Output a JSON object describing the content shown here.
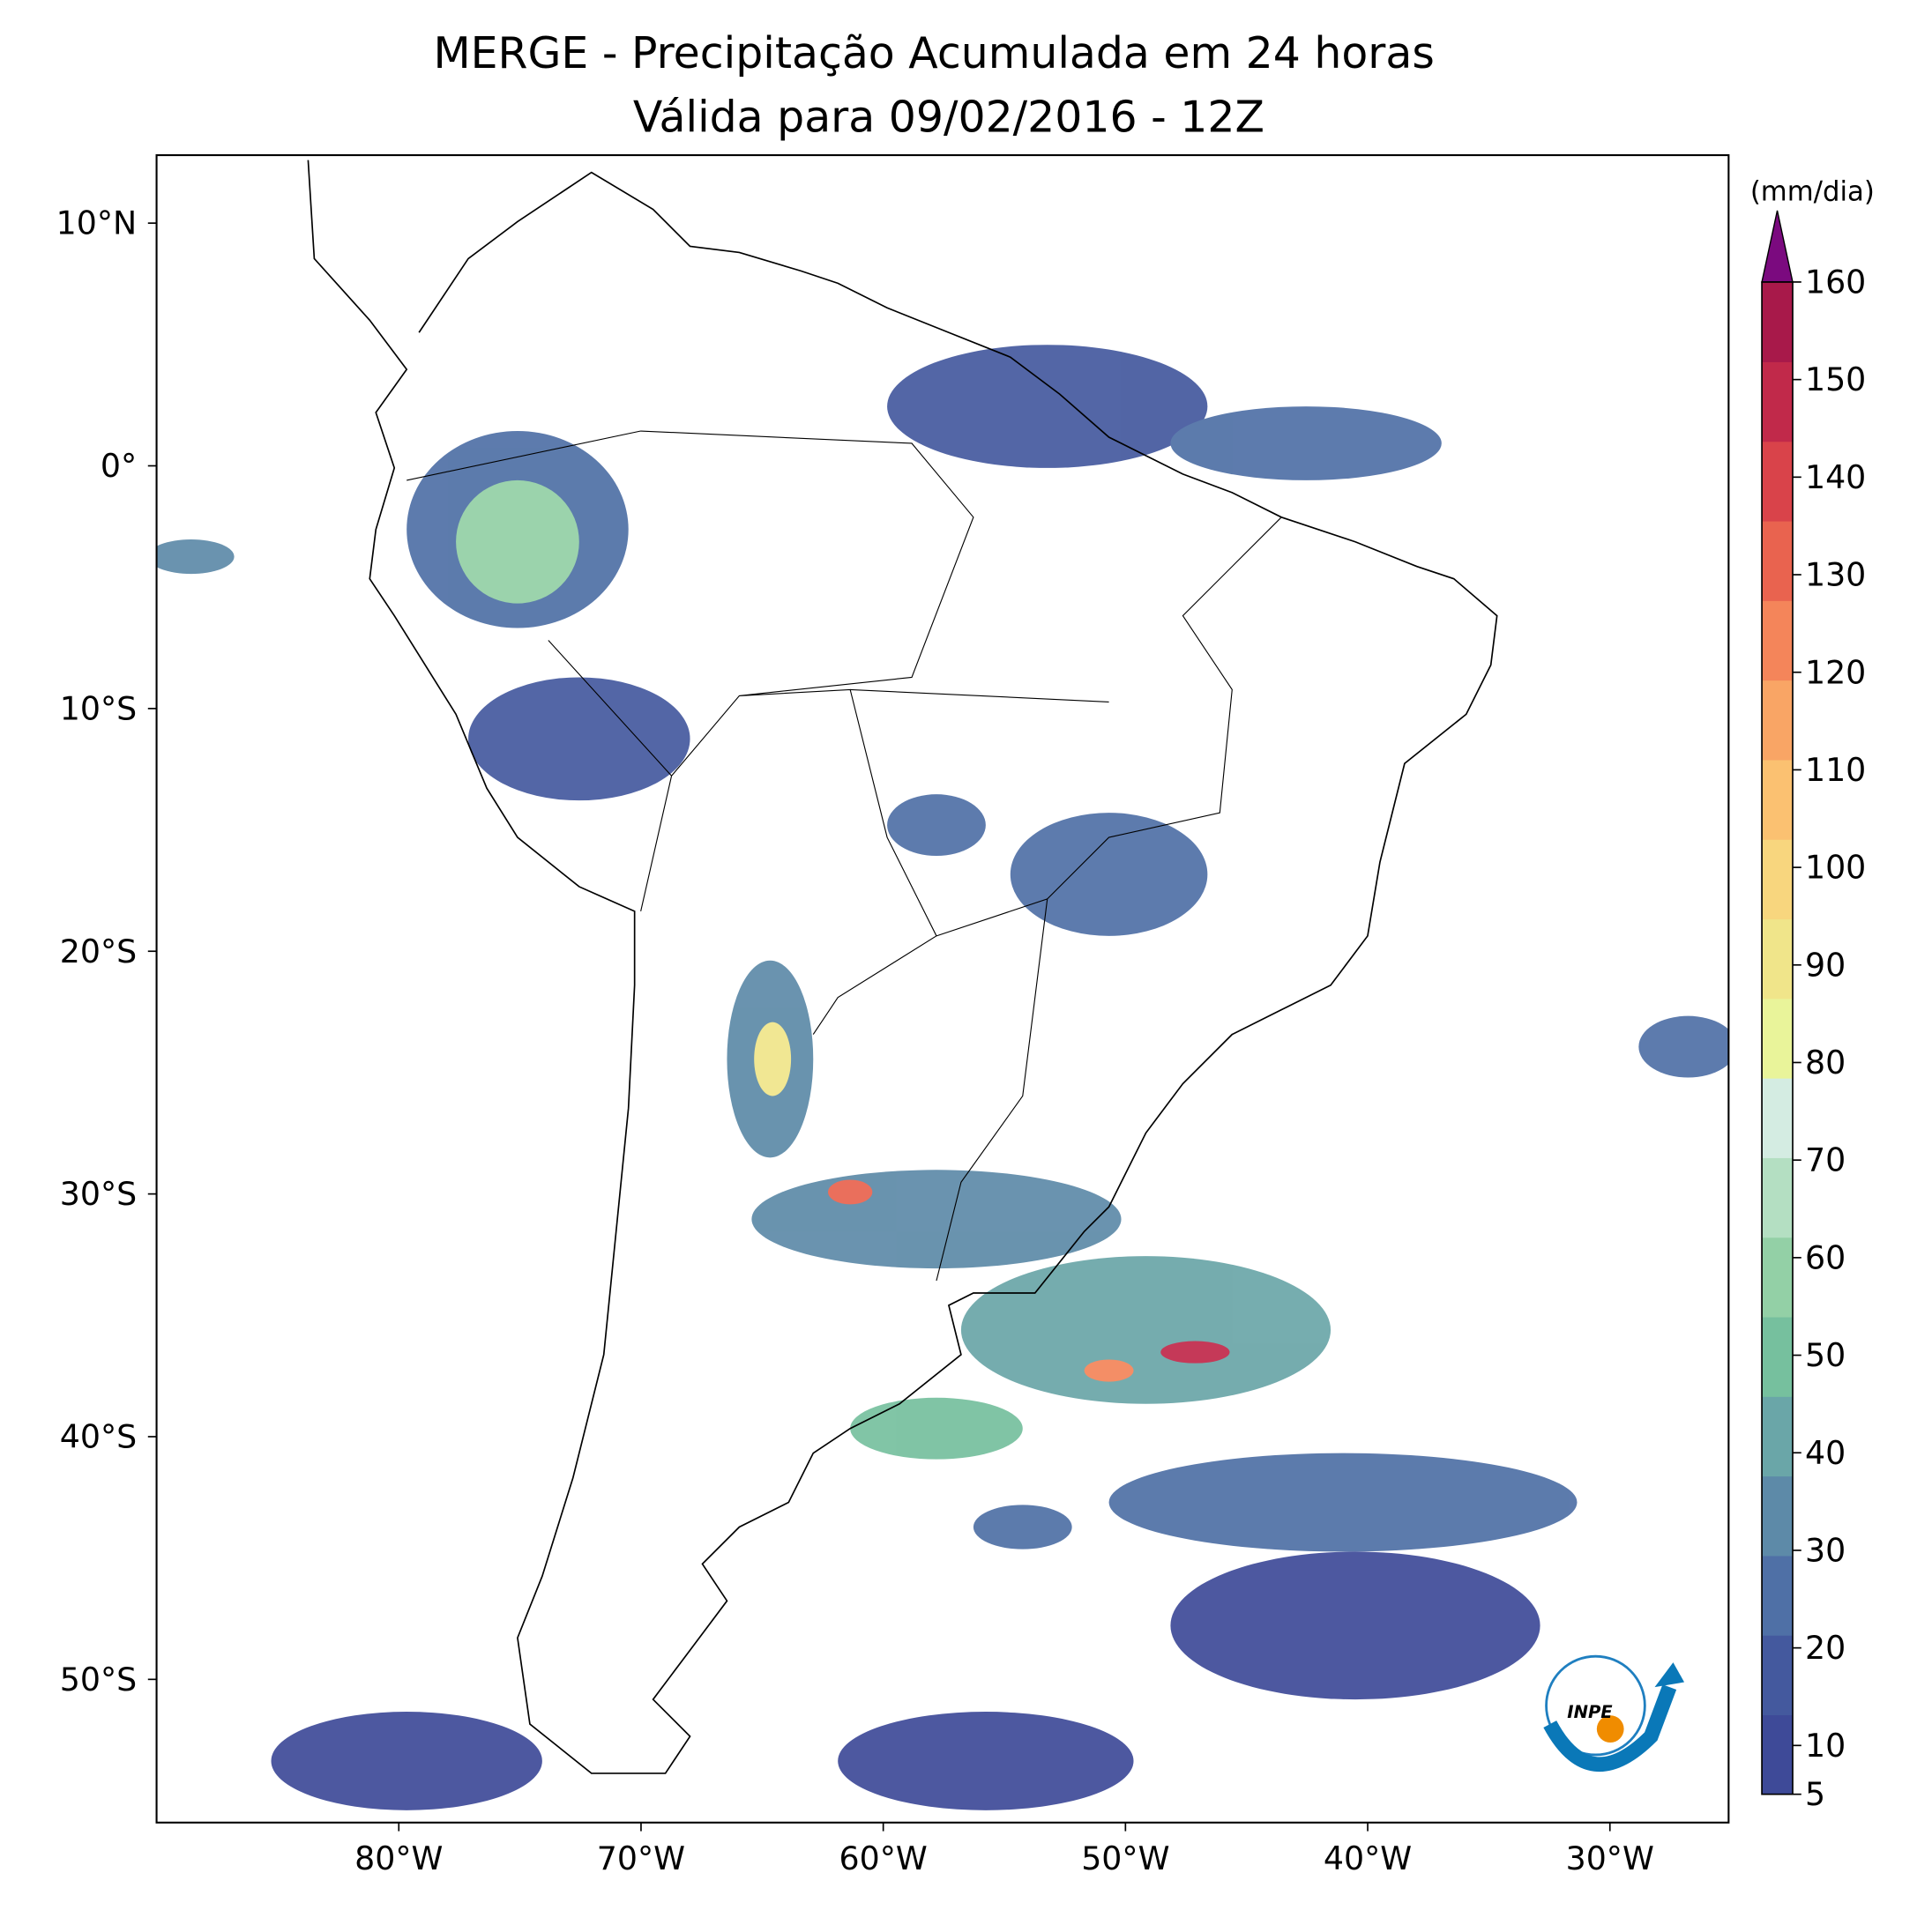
{
  "map": {
    "title": "MERGE - Precipitação Acumulada em 24 horas",
    "subtitle": "Válida para 09/02/2016 - 12Z",
    "xlim": [
      -90,
      -25.1
    ],
    "ylim": [
      -55.9,
      12.8
    ],
    "xticks": [
      {
        "value": -80,
        "label": "80°W"
      },
      {
        "value": -70,
        "label": "70°W"
      },
      {
        "value": -60,
        "label": "60°W"
      },
      {
        "value": -50,
        "label": "50°W"
      },
      {
        "value": -40,
        "label": "40°W"
      },
      {
        "value": -30,
        "label": "30°W"
      }
    ],
    "yticks": [
      {
        "value": 10,
        "label": "10°N"
      },
      {
        "value": 0,
        "label": "0°"
      },
      {
        "value": -10,
        "label": "10°S"
      },
      {
        "value": -20,
        "label": "20°S"
      },
      {
        "value": -30,
        "label": "30°S"
      },
      {
        "value": -40,
        "label": "40°S"
      },
      {
        "value": -50,
        "label": "50°S"
      }
    ],
    "colorbar": {
      "label": "(mm/dia)",
      "lim": [
        5,
        160
      ],
      "ticks": [
        5,
        10,
        20,
        30,
        40,
        50,
        60,
        70,
        80,
        90,
        100,
        110,
        120,
        130,
        140,
        150,
        160
      ],
      "colors": [
        "#3e4a98",
        "#44599e",
        "#4f70a6",
        "#5d8aa8",
        "#6aa6a8",
        "#76c09e",
        "#93d0a6",
        "#b4dfc2",
        "#d4ece2",
        "#e9f49a",
        "#f0e58a",
        "#f8d67e",
        "#fbc171",
        "#f9a565",
        "#f4855a",
        "#e9634f",
        "#d9434a",
        "#c1294a",
        "#a8194a"
      ],
      "extend_color": "#7b0a7f"
    },
    "logo": "INPE"
  }
}
